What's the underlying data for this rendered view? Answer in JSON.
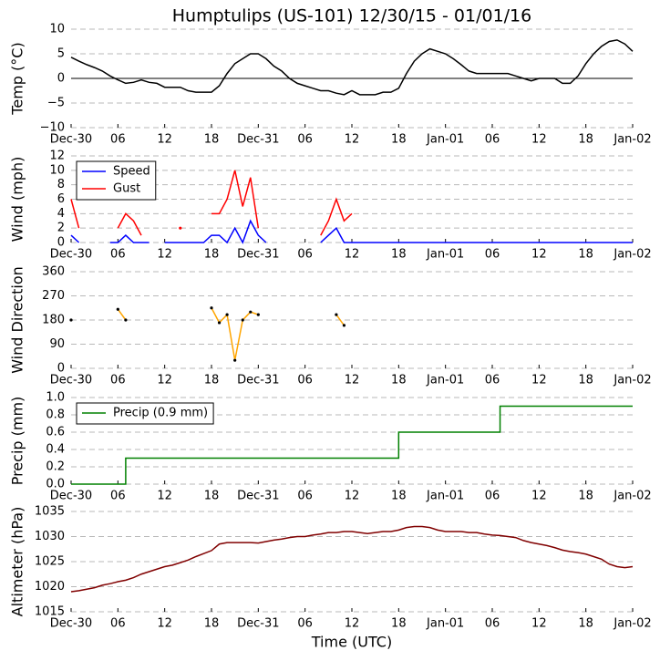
{
  "chart_data": [
    {
      "type": "line",
      "title": "Humptulips (US-101) 12/30/15 - 01/01/16",
      "ylabel": "Temp (°C)",
      "x": [
        0,
        1,
        2,
        3,
        4,
        5,
        6,
        7,
        8,
        9,
        10,
        11,
        12,
        13,
        14,
        15,
        16,
        17,
        18,
        19,
        20,
        21,
        22,
        23,
        24,
        25,
        26,
        27,
        28,
        29,
        30,
        31,
        32,
        33,
        34,
        35,
        36,
        37,
        38,
        39,
        40,
        41,
        42,
        43,
        44,
        45,
        46,
        47,
        48,
        49,
        50,
        51,
        52,
        53,
        54,
        55,
        56,
        57,
        58,
        59,
        60,
        61,
        62,
        63,
        64,
        65,
        66,
        67,
        68,
        69,
        70,
        71,
        72
      ],
      "series": [
        {
          "name": "Temp",
          "color": "#000000",
          "values": [
            4.3,
            3.5,
            2.8,
            2.2,
            1.5,
            0.5,
            -0.3,
            -1,
            -0.8,
            -0.3,
            -0.8,
            -1,
            -1.8,
            -1.8,
            -1.8,
            -2.5,
            -2.8,
            -2.8,
            -2.8,
            -1.5,
            1,
            3,
            4,
            5,
            5,
            4,
            2.5,
            1.5,
            0,
            -1,
            -1.5,
            -2,
            -2.5,
            -2.5,
            -3,
            -3.3,
            -2.5,
            -3.3,
            -3.3,
            -3.3,
            -2.8,
            -2.8,
            -2,
            1,
            3.5,
            5,
            6,
            5.5,
            5,
            4,
            2.8,
            1.5,
            1,
            1,
            1,
            1,
            1,
            0.5,
            0,
            -0.5,
            0,
            0,
            0,
            -1,
            -1,
            0.5,
            3,
            5,
            6.5,
            7.5,
            7.8,
            7,
            5.5
          ]
        }
      ],
      "xlim": [
        0,
        72
      ],
      "xticks": [
        {
          "value": 0,
          "label": "Dec-30"
        },
        {
          "value": 6,
          "label": "06"
        },
        {
          "value": 12,
          "label": "12"
        },
        {
          "value": 18,
          "label": "18"
        },
        {
          "value": 24,
          "label": "Dec-31"
        },
        {
          "value": 30,
          "label": "06"
        },
        {
          "value": 36,
          "label": "12"
        },
        {
          "value": 42,
          "label": "18"
        },
        {
          "value": 48,
          "label": "Jan-01"
        },
        {
          "value": 54,
          "label": "06"
        },
        {
          "value": 60,
          "label": "12"
        },
        {
          "value": 66,
          "label": "18"
        },
        {
          "value": 72,
          "label": "Jan-02"
        }
      ],
      "ylim": [
        -10,
        10
      ],
      "yticks": [
        {
          "value": -10,
          "label": "−10"
        },
        {
          "value": -5,
          "label": "−5"
        },
        0,
        5,
        10
      ],
      "grid": true,
      "zero_line": true
    },
    {
      "type": "line",
      "ylabel": "Wind (mph)",
      "x": [
        0,
        1,
        2,
        3,
        4,
        5,
        6,
        7,
        8,
        9,
        10,
        11,
        12,
        13,
        14,
        15,
        16,
        17,
        18,
        19,
        20,
        21,
        22,
        23,
        24,
        25,
        26,
        27,
        28,
        29,
        30,
        31,
        32,
        33,
        34,
        35,
        36,
        37,
        38,
        39,
        40,
        41,
        42,
        43,
        44,
        45,
        46,
        47,
        48,
        49,
        50,
        51,
        52,
        53,
        54,
        55,
        56,
        57,
        58,
        59,
        60,
        61,
        62,
        63,
        64,
        65,
        66,
        67,
        68,
        69,
        70,
        71,
        72
      ],
      "series": [
        {
          "name": "Speed",
          "color": "#0000ff",
          "values": [
            1,
            0,
            null,
            null,
            null,
            0,
            0,
            1,
            0,
            0,
            0,
            null,
            0,
            0,
            0,
            0,
            0,
            0,
            1,
            1,
            0,
            2,
            0,
            3,
            1,
            0,
            null,
            null,
            null,
            null,
            null,
            null,
            0,
            1,
            2,
            0,
            0,
            0,
            0,
            0,
            0,
            0,
            0,
            0,
            0,
            0,
            0,
            0,
            0,
            0,
            0,
            0,
            0,
            0,
            0,
            0,
            0,
            0,
            0,
            0,
            0,
            0,
            0,
            0,
            0,
            0,
            0,
            0,
            0,
            0,
            0,
            0,
            0
          ]
        },
        {
          "name": "Gust",
          "color": "#ff0000",
          "values": [
            6,
            2,
            null,
            null,
            null,
            null,
            2,
            4,
            3,
            1,
            null,
            null,
            null,
            null,
            2,
            null,
            null,
            null,
            4,
            4,
            6,
            10,
            5,
            9,
            2,
            null,
            null,
            null,
            null,
            null,
            null,
            null,
            1,
            3,
            6,
            3,
            4,
            null,
            null,
            null,
            null,
            null,
            null,
            null,
            null,
            null,
            null,
            null,
            null,
            null,
            null,
            null,
            null,
            null,
            null,
            null,
            null,
            null,
            null,
            null,
            null,
            null,
            null,
            null,
            null,
            null,
            null,
            null,
            null,
            null,
            null,
            null,
            null
          ]
        }
      ],
      "xlim": [
        0,
        72
      ],
      "xticks": [
        {
          "value": 0,
          "label": "Dec-30"
        },
        {
          "value": 6,
          "label": "06"
        },
        {
          "value": 12,
          "label": "12"
        },
        {
          "value": 18,
          "label": "18"
        },
        {
          "value": 24,
          "label": "Dec-31"
        },
        {
          "value": 30,
          "label": "06"
        },
        {
          "value": 36,
          "label": "12"
        },
        {
          "value": 42,
          "label": "18"
        },
        {
          "value": 48,
          "label": "Jan-01"
        },
        {
          "value": 54,
          "label": "06"
        },
        {
          "value": 60,
          "label": "12"
        },
        {
          "value": 66,
          "label": "18"
        },
        {
          "value": 72,
          "label": "Jan-02"
        }
      ],
      "ylim": [
        0,
        12
      ],
      "yticks": [
        0,
        2,
        4,
        6,
        8,
        10,
        12
      ],
      "grid": true,
      "legend": "upper left"
    },
    {
      "type": "line",
      "ylabel": "Wind Direction",
      "x": [
        0,
        1,
        2,
        3,
        4,
        5,
        6,
        7,
        8,
        9,
        10,
        11,
        12,
        13,
        14,
        15,
        16,
        17,
        18,
        19,
        20,
        21,
        22,
        23,
        24,
        25,
        26,
        27,
        28,
        29,
        30,
        31,
        32,
        33,
        34,
        35,
        36,
        37,
        38,
        39,
        40,
        41,
        42,
        43,
        44,
        45,
        46,
        47,
        48,
        49,
        50,
        51,
        52,
        53,
        54,
        55,
        56,
        57,
        58,
        59,
        60,
        61,
        62,
        63,
        64,
        65,
        66,
        67,
        68,
        69,
        70,
        71,
        72
      ],
      "series": [
        {
          "name": "Direction",
          "color": "#ffa500",
          "marker_color": "#000000",
          "values": [
            180,
            null,
            null,
            null,
            null,
            null,
            220,
            180,
            null,
            null,
            null,
            null,
            null,
            null,
            null,
            null,
            null,
            null,
            225,
            170,
            200,
            30,
            180,
            210,
            200,
            null,
            null,
            null,
            null,
            null,
            null,
            null,
            null,
            null,
            200,
            160,
            null,
            null,
            null,
            null,
            null,
            null,
            null,
            null,
            null,
            null,
            null,
            null,
            null,
            null,
            null,
            null,
            null,
            null,
            null,
            null,
            null,
            null,
            null,
            null,
            null,
            null,
            null,
            null,
            null,
            null,
            null,
            null,
            null,
            null,
            null,
            null,
            null
          ]
        }
      ],
      "xlim": [
        0,
        72
      ],
      "xticks": [
        {
          "value": 0,
          "label": "Dec-30"
        },
        {
          "value": 6,
          "label": "06"
        },
        {
          "value": 12,
          "label": "12"
        },
        {
          "value": 18,
          "label": "18"
        },
        {
          "value": 24,
          "label": "Dec-31"
        },
        {
          "value": 30,
          "label": "06"
        },
        {
          "value": 36,
          "label": "12"
        },
        {
          "value": 42,
          "label": "18"
        },
        {
          "value": 48,
          "label": "Jan-01"
        },
        {
          "value": 54,
          "label": "06"
        },
        {
          "value": 60,
          "label": "12"
        },
        {
          "value": 66,
          "label": "18"
        },
        {
          "value": 72,
          "label": "Jan-02"
        }
      ],
      "ylim": [
        0,
        360
      ],
      "yticks": [
        0,
        90,
        180,
        270,
        360
      ],
      "grid": true
    },
    {
      "type": "line",
      "ylabel": "Precip (mm)",
      "drawstyle": "steps-post",
      "x": [
        0,
        1,
        2,
        3,
        4,
        5,
        6,
        7,
        8,
        9,
        10,
        11,
        12,
        13,
        14,
        15,
        16,
        17,
        18,
        19,
        20,
        21,
        22,
        23,
        24,
        25,
        26,
        27,
        28,
        29,
        30,
        31,
        32,
        33,
        34,
        35,
        36,
        37,
        38,
        39,
        40,
        41,
        42,
        43,
        44,
        45,
        46,
        47,
        48,
        49,
        50,
        51,
        52,
        53,
        54,
        55,
        56,
        57,
        58,
        59,
        60,
        61,
        62,
        63,
        64,
        65,
        66,
        67,
        68,
        69,
        70,
        71,
        72
      ],
      "series": [
        {
          "name": "Precip (0.9 mm)",
          "color": "#008000",
          "values": [
            0,
            0,
            0,
            0,
            0,
            0,
            0,
            0.3,
            0.3,
            0.3,
            0.3,
            0.3,
            0.3,
            0.3,
            0.3,
            0.3,
            0.3,
            0.3,
            0.3,
            0.3,
            0.3,
            0.3,
            0.3,
            0.3,
            0.3,
            0.3,
            0.3,
            0.3,
            0.3,
            0.3,
            0.3,
            0.3,
            0.3,
            0.3,
            0.3,
            0.3,
            0.3,
            0.3,
            0.3,
            0.3,
            0.3,
            0.3,
            0.6,
            0.6,
            0.6,
            0.6,
            0.6,
            0.6,
            0.6,
            0.6,
            0.6,
            0.6,
            0.6,
            0.6,
            0.6,
            0.9,
            0.9,
            0.9,
            0.9,
            0.9,
            0.9,
            0.9,
            0.9,
            0.9,
            0.9,
            0.9,
            0.9,
            0.9,
            0.9,
            0.9,
            0.9,
            0.9,
            0.9
          ]
        }
      ],
      "xlim": [
        0,
        72
      ],
      "xticks": [
        {
          "value": 0,
          "label": "Dec-30"
        },
        {
          "value": 6,
          "label": "06"
        },
        {
          "value": 12,
          "label": "12"
        },
        {
          "value": 18,
          "label": "18"
        },
        {
          "value": 24,
          "label": "Dec-31"
        },
        {
          "value": 30,
          "label": "06"
        },
        {
          "value": 36,
          "label": "12"
        },
        {
          "value": 42,
          "label": "18"
        },
        {
          "value": 48,
          "label": "Jan-01"
        },
        {
          "value": 54,
          "label": "06"
        },
        {
          "value": 60,
          "label": "12"
        },
        {
          "value": 66,
          "label": "18"
        },
        {
          "value": 72,
          "label": "Jan-02"
        }
      ],
      "ylim": [
        0,
        1
      ],
      "yticks": [
        {
          "value": 0,
          "label": "0.0"
        },
        0.2,
        0.4,
        0.6,
        0.8,
        {
          "value": 1,
          "label": "1.0"
        }
      ],
      "grid": true,
      "legend": "upper left"
    },
    {
      "type": "line",
      "ylabel": "Altimeter (hPa)",
      "xlabel": "Time (UTC)",
      "x": [
        0,
        1,
        2,
        3,
        4,
        5,
        6,
        7,
        8,
        9,
        10,
        11,
        12,
        13,
        14,
        15,
        16,
        17,
        18,
        19,
        20,
        21,
        22,
        23,
        24,
        25,
        26,
        27,
        28,
        29,
        30,
        31,
        32,
        33,
        34,
        35,
        36,
        37,
        38,
        39,
        40,
        41,
        42,
        43,
        44,
        45,
        46,
        47,
        48,
        49,
        50,
        51,
        52,
        53,
        54,
        55,
        56,
        57,
        58,
        59,
        60,
        61,
        62,
        63,
        64,
        65,
        66,
        67,
        68,
        69,
        70,
        71,
        72
      ],
      "series": [
        {
          "name": "Altimeter",
          "color": "#800000",
          "values": [
            1019,
            1019.2,
            1019.5,
            1019.8,
            1020.3,
            1020.6,
            1021,
            1021.3,
            1021.8,
            1022.5,
            1023,
            1023.5,
            1024,
            1024.3,
            1024.8,
            1025.3,
            1026,
            1026.6,
            1027.2,
            1028.5,
            1028.8,
            1028.8,
            1028.8,
            1028.8,
            1028.7,
            1029,
            1029.3,
            1029.5,
            1029.8,
            1030,
            1030,
            1030.3,
            1030.5,
            1030.8,
            1030.8,
            1031,
            1031,
            1030.8,
            1030.6,
            1030.8,
            1031,
            1031,
            1031.3,
            1031.8,
            1032,
            1032,
            1031.8,
            1031.3,
            1031,
            1031,
            1031,
            1030.8,
            1030.8,
            1030.5,
            1030.3,
            1030.2,
            1030,
            1029.8,
            1029.2,
            1028.8,
            1028.5,
            1028.2,
            1027.8,
            1027.3,
            1027,
            1026.8,
            1026.5,
            1026,
            1025.5,
            1024.5,
            1024,
            1023.8,
            1024
          ]
        }
      ],
      "xlim": [
        0,
        72
      ],
      "xticks": [
        {
          "value": 0,
          "label": "Dec-30"
        },
        {
          "value": 6,
          "label": "06"
        },
        {
          "value": 12,
          "label": "12"
        },
        {
          "value": 18,
          "label": "18"
        },
        {
          "value": 24,
          "label": "Dec-31"
        },
        {
          "value": 30,
          "label": "06"
        },
        {
          "value": 36,
          "label": "12"
        },
        {
          "value": 42,
          "label": "18"
        },
        {
          "value": 48,
          "label": "Jan-01"
        },
        {
          "value": 54,
          "label": "06"
        },
        {
          "value": 60,
          "label": "12"
        },
        {
          "value": 66,
          "label": "18"
        },
        {
          "value": 72,
          "label": "Jan-02"
        }
      ],
      "ylim": [
        1015,
        1035
      ],
      "yticks": [
        1015,
        1020,
        1025,
        1030,
        1035
      ],
      "grid": true
    }
  ]
}
